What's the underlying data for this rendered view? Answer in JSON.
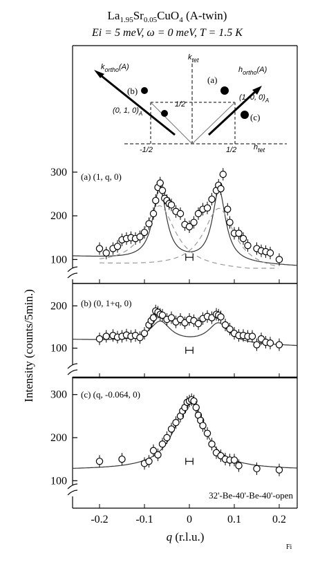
{
  "title": {
    "formula_parts": [
      "La",
      "1.95",
      "Sr",
      "0.05",
      "CuO",
      "4",
      " (A-twin)"
    ],
    "conditions": "Ei = 5 meV, ω = 0 meV, T = 1.5 K"
  },
  "inset": {
    "k_tet": "k",
    "k_tet_sub": "tet",
    "h_tet": "h",
    "h_tet_sub": "tet",
    "k_ortho": "k",
    "k_ortho_sub": "ortho",
    "k_ortho_suffix": "(A)",
    "h_ortho": "h",
    "h_ortho_sub": "ortho",
    "h_ortho_suffix": "(A)",
    "label_a": "(a)",
    "label_b": "(b)",
    "label_c": "(c)",
    "pt_010": "(0,  1,  0)",
    "pt_010_sub": "A",
    "pt_100": "(1,  0,  0)",
    "pt_100_sub": "A",
    "half_pos_y": "1/2",
    "half_neg_x": "-1/2",
    "half_pos_x": "1/2"
  },
  "chart_data": [
    {
      "type": "scatter",
      "panel_label": "(a) (1, q, 0)",
      "xlim": [
        -0.26,
        0.24
      ],
      "ylim": [
        80,
        330
      ],
      "yticks": [
        100,
        200,
        300
      ],
      "points": [
        [
          -0.2,
          125
        ],
        [
          -0.185,
          115
        ],
        [
          -0.17,
          125
        ],
        [
          -0.16,
          130
        ],
        [
          -0.15,
          145
        ],
        [
          -0.14,
          148
        ],
        [
          -0.13,
          150
        ],
        [
          -0.12,
          148
        ],
        [
          -0.11,
          152
        ],
        [
          -0.1,
          162
        ],
        [
          -0.09,
          182
        ],
        [
          -0.08,
          205
        ],
        [
          -0.075,
          235
        ],
        [
          -0.07,
          265
        ],
        [
          -0.065,
          275
        ],
        [
          -0.06,
          258
        ],
        [
          -0.055,
          240
        ],
        [
          -0.05,
          235
        ],
        [
          -0.045,
          228
        ],
        [
          -0.04,
          225
        ],
        [
          -0.03,
          210
        ],
        [
          -0.02,
          205
        ],
        [
          -0.01,
          180
        ],
        [
          0.0,
          175
        ],
        [
          0.01,
          185
        ],
        [
          0.02,
          205
        ],
        [
          0.03,
          215
        ],
        [
          0.04,
          218
        ],
        [
          0.05,
          238
        ],
        [
          0.06,
          258
        ],
        [
          0.065,
          270
        ],
        [
          0.07,
          262
        ],
        [
          0.075,
          295
        ],
        [
          0.085,
          215
        ],
        [
          0.09,
          185
        ],
        [
          0.1,
          160
        ],
        [
          0.11,
          160
        ],
        [
          0.12,
          148
        ],
        [
          0.13,
          132
        ],
        [
          0.15,
          125
        ],
        [
          0.16,
          120
        ],
        [
          0.17,
          118
        ],
        [
          0.18,
          115
        ],
        [
          0.2,
          100
        ]
      ],
      "fit": {
        "baseline": 95,
        "slope": -45,
        "amplitude": 165,
        "centers": [
          -0.066,
          0.066
        ],
        "width": 0.018
      },
      "components": {
        "amplitude": 140,
        "centers": [
          -0.066,
          0.066
        ],
        "width": 0.042,
        "offset": 15
      }
    },
    {
      "type": "scatter",
      "panel_label": "(b) (0, 1+q, 0)",
      "xlim": [
        -0.26,
        0.24
      ],
      "ylim": [
        60,
        240
      ],
      "yticks": [
        100,
        200
      ],
      "points": [
        [
          -0.2,
          122
        ],
        [
          -0.185,
          128
        ],
        [
          -0.17,
          130
        ],
        [
          -0.16,
          126
        ],
        [
          -0.15,
          128
        ],
        [
          -0.14,
          131
        ],
        [
          -0.13,
          128
        ],
        [
          -0.12,
          130
        ],
        [
          -0.11,
          125
        ],
        [
          -0.1,
          135
        ],
        [
          -0.09,
          155
        ],
        [
          -0.085,
          165
        ],
        [
          -0.08,
          172
        ],
        [
          -0.075,
          188
        ],
        [
          -0.07,
          185
        ],
        [
          -0.065,
          180
        ],
        [
          -0.06,
          178
        ],
        [
          -0.05,
          168
        ],
        [
          -0.04,
          172
        ],
        [
          -0.03,
          162
        ],
        [
          -0.02,
          168
        ],
        [
          -0.01,
          160
        ],
        [
          0.0,
          168
        ],
        [
          0.01,
          165
        ],
        [
          0.02,
          158
        ],
        [
          0.03,
          170
        ],
        [
          0.04,
          175
        ],
        [
          0.05,
          172
        ],
        [
          0.06,
          180
        ],
        [
          0.065,
          178
        ],
        [
          0.07,
          174
        ],
        [
          0.08,
          155
        ],
        [
          0.09,
          145
        ],
        [
          0.1,
          135
        ],
        [
          0.11,
          130
        ],
        [
          0.12,
          130
        ],
        [
          0.13,
          128
        ],
        [
          0.14,
          128
        ],
        [
          0.15,
          108
        ],
        [
          0.16,
          122
        ],
        [
          0.17,
          114
        ],
        [
          0.18,
          112
        ],
        [
          0.2,
          108
        ]
      ],
      "fit": {
        "baseline": 112,
        "slope": -30,
        "amplitude": 48,
        "centers": [
          -0.065,
          0.065
        ],
        "width": 0.028
      }
    },
    {
      "type": "scatter",
      "panel_label": "(c) (q, -0.064, 0)",
      "xlim": [
        -0.26,
        0.24
      ],
      "ylim": [
        70,
        330
      ],
      "yticks": [
        100,
        200,
        300
      ],
      "points": [
        [
          -0.2,
          145
        ],
        [
          -0.15,
          150
        ],
        [
          -0.1,
          140
        ],
        [
          -0.09,
          145
        ],
        [
          -0.08,
          170
        ],
        [
          -0.07,
          160
        ],
        [
          -0.06,
          185
        ],
        [
          -0.05,
          200
        ],
        [
          -0.04,
          220
        ],
        [
          -0.03,
          235
        ],
        [
          -0.02,
          250
        ],
        [
          -0.015,
          262
        ],
        [
          -0.01,
          270
        ],
        [
          -0.005,
          282
        ],
        [
          0.0,
          285
        ],
        [
          0.005,
          288
        ],
        [
          0.01,
          285
        ],
        [
          0.015,
          270
        ],
        [
          0.02,
          252
        ],
        [
          0.025,
          240
        ],
        [
          0.03,
          228
        ],
        [
          0.04,
          210
        ],
        [
          0.05,
          185
        ],
        [
          0.06,
          165
        ],
        [
          0.07,
          158
        ],
        [
          0.08,
          150
        ],
        [
          0.09,
          148
        ],
        [
          0.1,
          148
        ],
        [
          0.11,
          135
        ],
        [
          0.15,
          128
        ],
        [
          0.2,
          125
        ]
      ],
      "fit": {
        "baseline": 125,
        "amplitude": 163,
        "center": 0.0,
        "width": 0.04
      },
      "annotation": "32'-Be-40'-Be-40'-open"
    }
  ],
  "x_axis": {
    "ticks": [
      -0.2,
      -0.1,
      0,
      0.1,
      0.2
    ],
    "tick_labels": [
      "-0.2",
      "-0.1",
      "0",
      "0.1",
      "0.2"
    ],
    "label_var": "q",
    "label_unit": " (r.l.u.)"
  },
  "y_axis": {
    "label": "Intensity (counts/5min.)"
  },
  "stray_mark": "Fi"
}
